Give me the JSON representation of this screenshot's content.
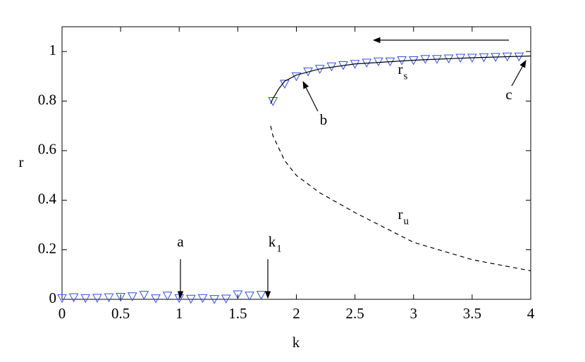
{
  "chart_data": {
    "type": "line",
    "xlabel": "k",
    "ylabel": "r",
    "xlim": [
      0,
      4
    ],
    "ylim": [
      0,
      1.1
    ],
    "xticks": [
      0,
      0.5,
      1,
      1.5,
      2,
      2.5,
      3,
      3.5,
      4
    ],
    "yticks": [
      0,
      0.2,
      0.4,
      0.6,
      0.8,
      1
    ],
    "series": [
      {
        "kind": "markers",
        "color": "#2f4fe0",
        "x": [
          0,
          0.1,
          0.2,
          0.3,
          0.4,
          0.5,
          0.6,
          0.7,
          0.8,
          0.9,
          1,
          1.1,
          1.2,
          1.3,
          1.4,
          1.5,
          1.6,
          1.7,
          1.8,
          1.9,
          2,
          2.1,
          2.2,
          2.3,
          2.4,
          2.5,
          2.6,
          2.7,
          2.8,
          2.9,
          3,
          3.1,
          3.2,
          3.3,
          3.4,
          3.5,
          3.6,
          3.7,
          3.8,
          3.9
        ],
        "values": [
          0.005,
          0.008,
          0.005,
          0.006,
          0.008,
          0.01,
          0.012,
          0.018,
          0.004,
          0.015,
          0.005,
          0.002,
          0.005,
          0.001,
          0.003,
          0.02,
          0.015,
          0.018,
          0.8,
          0.87,
          0.9,
          0.92,
          0.93,
          0.94,
          0.945,
          0.95,
          0.955,
          0.96,
          0.96,
          0.965,
          0.965,
          0.97,
          0.97,
          0.972,
          0.975,
          0.975,
          0.977,
          0.978,
          0.98,
          0.98
        ]
      },
      {
        "kind": "solid",
        "color": "#000000",
        "x": [
          1.78,
          1.8,
          1.85,
          1.9,
          2,
          2.2,
          2.5,
          3,
          3.5,
          4
        ],
        "values": [
          0.79,
          0.81,
          0.85,
          0.88,
          0.905,
          0.93,
          0.95,
          0.965,
          0.975,
          0.982
        ]
      },
      {
        "kind": "dashed",
        "color": "#000000",
        "x": [
          1.78,
          1.8,
          1.9,
          2,
          2.2,
          2.5,
          3,
          3.5,
          4
        ],
        "values": [
          0.7,
          0.66,
          0.56,
          0.5,
          0.43,
          0.35,
          0.23,
          0.16,
          0.115
        ]
      }
    ],
    "annotations": [
      {
        "text": "a"
      },
      {
        "text": "k",
        "sub": "1"
      },
      {
        "text": "b"
      },
      {
        "text": "c"
      },
      {
        "text": "r",
        "sub": "s"
      },
      {
        "text": "r",
        "sub": "u"
      }
    ]
  }
}
